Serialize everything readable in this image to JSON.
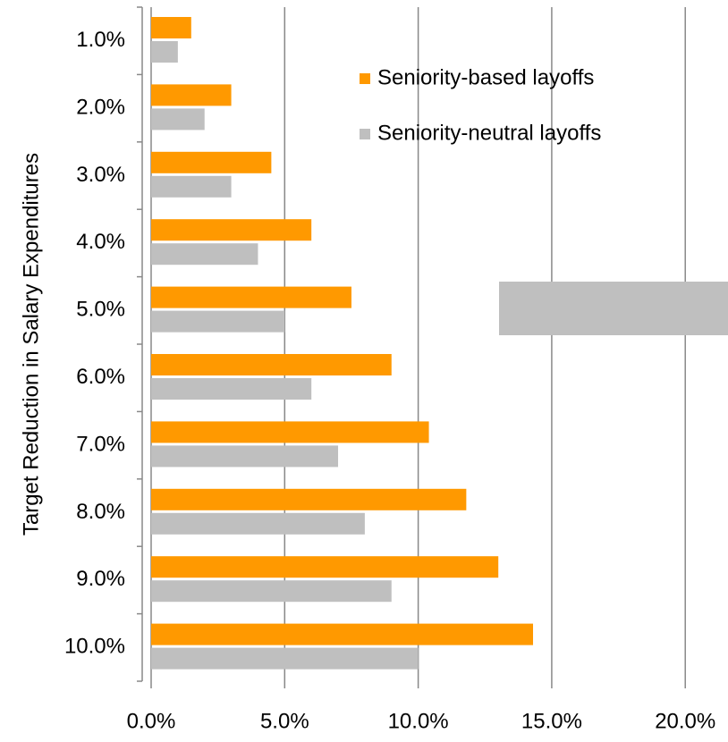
{
  "chart_data": {
    "type": "bar",
    "orientation": "horizontal",
    "y_axis_label": "Target Reduction in Salary Expenditures",
    "categories": [
      "1.0%",
      "2.0%",
      "3.0%",
      "4.0%",
      "5.0%",
      "6.0%",
      "7.0%",
      "8.0%",
      "9.0%",
      "10.0%"
    ],
    "series": [
      {
        "name": "Seniority-based layoffs",
        "color": "#ff9900",
        "values": [
          1.5,
          3.0,
          4.5,
          6.0,
          7.5,
          9.0,
          10.4,
          11.8,
          13.0,
          14.3
        ]
      },
      {
        "name": "Seniority-neutral layoffs",
        "color": "#bfbfbf",
        "values": [
          1.0,
          2.0,
          3.0,
          4.0,
          5.0,
          6.0,
          7.0,
          8.0,
          9.0,
          10.0
        ]
      }
    ],
    "xlim": [
      0,
      21.6
    ],
    "xticks": [
      {
        "value": 0,
        "label": "0.0%"
      },
      {
        "value": 5,
        "label": "5.0%"
      },
      {
        "value": 10,
        "label": "10.0%"
      },
      {
        "value": 15,
        "label": "15.0%"
      },
      {
        "value": 20,
        "label": "20.0%"
      }
    ],
    "grid": true,
    "legend": "top-right"
  }
}
